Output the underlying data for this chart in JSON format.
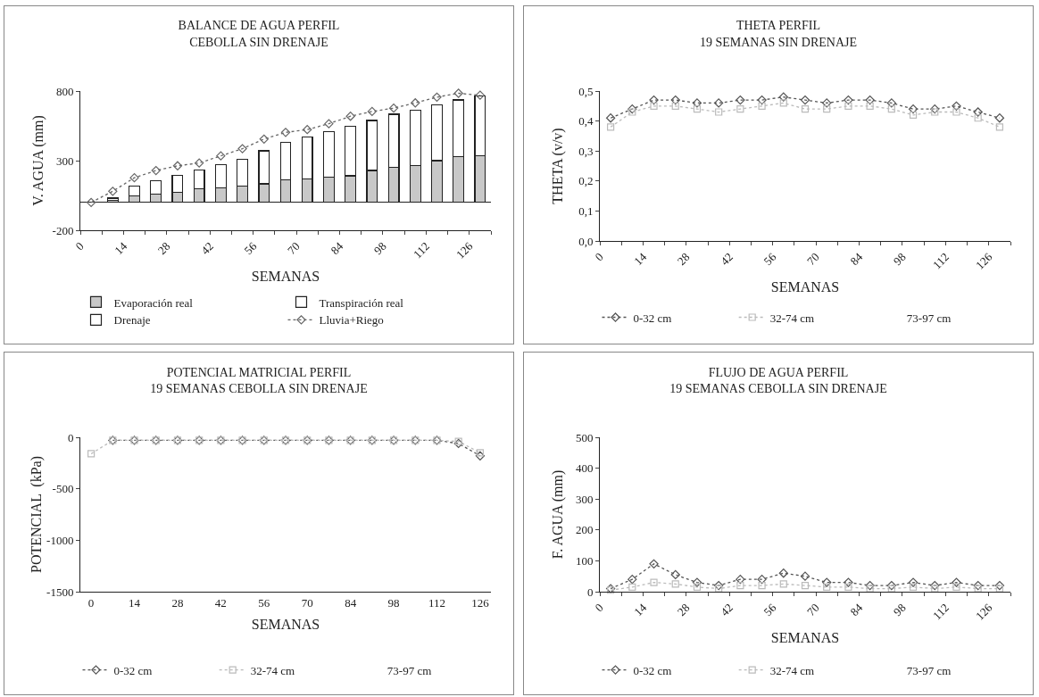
{
  "chart_data": [
    {
      "type": "bar",
      "stacked": true,
      "title": "BALANCE DE AGUA PERFIL",
      "subtitle": "CEBOLLA SIN DRENAJE",
      "xlabel": "SEMANAS",
      "ylabel": "V. AGUA (mm)",
      "x": [
        3.5,
        10.5,
        17.5,
        24.5,
        31.5,
        38.5,
        45.5,
        52.5,
        59.5,
        66.5,
        73.5,
        80.5,
        87.5,
        94.5,
        101.5,
        108.5,
        115.5,
        122.5,
        129.5
      ],
      "xlim": [
        0,
        133
      ],
      "xticks": [
        0,
        {
          "value": 7,
          "label": null
        },
        14,
        {
          "value": 21,
          "label": null
        },
        28,
        {
          "value": 35,
          "label": null
        },
        42,
        {
          "value": 49,
          "label": null
        },
        56,
        {
          "value": 63,
          "label": null
        },
        70,
        {
          "value": 77,
          "label": null
        },
        84,
        {
          "value": 91,
          "label": null
        },
        98,
        {
          "value": 105,
          "label": null
        },
        112,
        {
          "value": 119,
          "label": null
        },
        126,
        {
          "value": 133,
          "label": null
        }
      ],
      "ylim": [
        -200,
        800
      ],
      "yticks": [
        -200,
        300,
        800
      ],
      "legend": "bottom",
      "grid": false,
      "series": [
        {
          "name": "Evaporación real",
          "color": "#c8c8c8",
          "values": [
            null,
            15,
            46,
            62,
            74,
            96,
            105,
            115,
            133,
            164,
            170,
            180,
            191,
            229,
            253,
            266,
            300,
            328,
            334
          ]
        },
        {
          "name": "Transpiración real",
          "color": "#ffffff",
          "values": [
            null,
            16,
            69,
            93,
            121,
            136,
            164,
            194,
            237,
            268,
            302,
            327,
            356,
            359,
            380,
            394,
            402,
            408,
            429
          ]
        },
        {
          "name": "Drenaje",
          "color": "#ffffff",
          "values": [
            null,
            null,
            null,
            null,
            null,
            null,
            null,
            null,
            null,
            null,
            null,
            null,
            null,
            null,
            null,
            null,
            null,
            null,
            null
          ]
        },
        {
          "name": "Lluvia+Riego",
          "type": "line",
          "color": "#666666",
          "line_style": "dotted",
          "marker": "diamond",
          "values": [
            0,
            80,
            177,
            229,
            263,
            283,
            334,
            386,
            455,
            503,
            523,
            565,
            619,
            653,
            677,
            715,
            756,
            784,
            770
          ]
        }
      ]
    },
    {
      "type": "line",
      "title": "THETA PERFIL",
      "subtitle": "19 SEMANAS SIN DRENAJE",
      "xlabel": "SEMANAS",
      "ylabel": "THETA (v/v)",
      "x": [
        3.5,
        10.5,
        17.5,
        24.5,
        31.5,
        38.5,
        45.5,
        52.5,
        59.5,
        66.5,
        73.5,
        80.5,
        87.5,
        94.5,
        101.5,
        108.5,
        115.5,
        122.5,
        129.5
      ],
      "xlim": [
        0,
        133
      ],
      "xticks": [
        0,
        {
          "value": 7,
          "label": null
        },
        14,
        {
          "value": 21,
          "label": null
        },
        28,
        {
          "value": 35,
          "label": null
        },
        42,
        {
          "value": 49,
          "label": null
        },
        56,
        {
          "value": 63,
          "label": null
        },
        70,
        {
          "value": 77,
          "label": null
        },
        84,
        {
          "value": 91,
          "label": null
        },
        98,
        {
          "value": 105,
          "label": null
        },
        112,
        {
          "value": 119,
          "label": null
        },
        126,
        {
          "value": 133,
          "label": null
        }
      ],
      "ylim": [
        0,
        0.5
      ],
      "yticks": [
        {
          "value": 0,
          "label": "0,0"
        },
        {
          "value": 0.1,
          "label": "0,1"
        },
        {
          "value": 0.2,
          "label": "0,2"
        },
        {
          "value": 0.3,
          "label": "0,3"
        },
        {
          "value": 0.4,
          "label": "0,4"
        },
        {
          "value": 0.5,
          "label": "0,5"
        }
      ],
      "legend": "bottom",
      "grid": false,
      "series": [
        {
          "name": "0-32 cm",
          "color": "#555555",
          "line_style": "dotted",
          "marker": "diamond",
          "values": [
            0.41,
            0.44,
            0.47,
            0.47,
            0.46,
            0.46,
            0.47,
            0.47,
            0.48,
            0.47,
            0.46,
            0.47,
            0.47,
            0.46,
            0.44,
            0.44,
            0.45,
            0.43,
            0.41
          ]
        },
        {
          "name": "32-74 cm",
          "color": "#bbbbbb",
          "line_style": "dotted",
          "marker": "square",
          "values": [
            0.38,
            0.43,
            0.45,
            0.45,
            0.44,
            0.43,
            0.44,
            0.45,
            0.46,
            0.44,
            0.44,
            0.45,
            0.45,
            0.44,
            0.42,
            0.43,
            0.43,
            0.41,
            0.38
          ]
        },
        {
          "name": "73-97 cm",
          "values": [
            null,
            null,
            null,
            null,
            null,
            null,
            null,
            null,
            null,
            null,
            null,
            null,
            null,
            null,
            null,
            null,
            null,
            null,
            null
          ]
        }
      ]
    },
    {
      "type": "line",
      "title": "POTENCIAL MATRICIAL PERFIL",
      "subtitle": "19 SEMANAS CEBOLLA SIN DRENAJE",
      "xlabel": "SEMANAS",
      "ylabel": "POTENCIAL  (kPa)",
      "x": [
        0,
        7,
        14,
        21,
        28,
        35,
        42,
        49,
        56,
        63,
        70,
        77,
        84,
        91,
        98,
        105,
        112,
        119,
        126
      ],
      "xlim": [
        -3.5,
        129.5
      ],
      "xticks": [
        0,
        14,
        28,
        42,
        56,
        70,
        84,
        98,
        112,
        126
      ],
      "ylim": [
        -1500,
        0
      ],
      "yticks": [
        -1500,
        -1000,
        -500,
        0
      ],
      "legend": "bottom",
      "grid": false,
      "series": [
        {
          "name": "0-32 cm",
          "color": "#555555",
          "line_style": "dotted",
          "marker": "diamond",
          "values": [
            null,
            -30,
            -30,
            -30,
            -30,
            -30,
            -30,
            -30,
            -30,
            -30,
            -30,
            -30,
            -30,
            -30,
            -30,
            -30,
            -30,
            -60,
            -180
          ]
        },
        {
          "name": "32-74 cm",
          "color": "#bbbbbb",
          "line_style": "dotted",
          "marker": "square",
          "values": [
            -160,
            -30,
            -30,
            -30,
            -30,
            -30,
            -30,
            -30,
            -30,
            -30,
            -30,
            -30,
            -30,
            -30,
            -30,
            -30,
            -30,
            -40,
            -150
          ]
        },
        {
          "name": "73-97 cm",
          "values": [
            null,
            null,
            null,
            null,
            null,
            null,
            null,
            null,
            null,
            null,
            null,
            null,
            null,
            null,
            null,
            null,
            null,
            null,
            null
          ]
        }
      ]
    },
    {
      "type": "line",
      "title": "FLUJO DE AGUA PERFIL",
      "subtitle": "19 SEMANAS CEBOLLA SIN DRENAJE",
      "xlabel": "SEMANAS",
      "ylabel": "F. AGUA (mm)",
      "x": [
        3.5,
        10.5,
        17.5,
        24.5,
        31.5,
        38.5,
        45.5,
        52.5,
        59.5,
        66.5,
        73.5,
        80.5,
        87.5,
        94.5,
        101.5,
        108.5,
        115.5,
        122.5,
        129.5
      ],
      "xlim": [
        0,
        133
      ],
      "xticks": [
        0,
        {
          "value": 7,
          "label": null
        },
        14,
        {
          "value": 21,
          "label": null
        },
        28,
        {
          "value": 35,
          "label": null
        },
        42,
        {
          "value": 49,
          "label": null
        },
        56,
        {
          "value": 63,
          "label": null
        },
        70,
        {
          "value": 77,
          "label": null
        },
        84,
        {
          "value": 91,
          "label": null
        },
        98,
        {
          "value": 105,
          "label": null
        },
        112,
        {
          "value": 119,
          "label": null
        },
        126,
        {
          "value": 133,
          "label": null
        }
      ],
      "ylim": [
        0,
        500
      ],
      "yticks": [
        0,
        100,
        200,
        300,
        400,
        500
      ],
      "legend": "bottom",
      "grid": false,
      "series": [
        {
          "name": "0-32 cm",
          "color": "#555555",
          "line_style": "dotted",
          "marker": "diamond",
          "values": [
            10,
            40,
            90,
            55,
            30,
            20,
            40,
            40,
            60,
            50,
            30,
            30,
            20,
            20,
            30,
            20,
            30,
            20,
            20
          ]
        },
        {
          "name": "32-74 cm",
          "color": "#bbbbbb",
          "line_style": "dotted",
          "marker": "square",
          "values": [
            5,
            15,
            30,
            25,
            15,
            10,
            20,
            20,
            25,
            20,
            15,
            15,
            10,
            10,
            15,
            10,
            15,
            10,
            10
          ]
        },
        {
          "name": "73-97 cm",
          "values": [
            null,
            null,
            null,
            null,
            null,
            null,
            null,
            null,
            null,
            null,
            null,
            null,
            null,
            null,
            null,
            null,
            null,
            null,
            null
          ]
        }
      ]
    }
  ]
}
